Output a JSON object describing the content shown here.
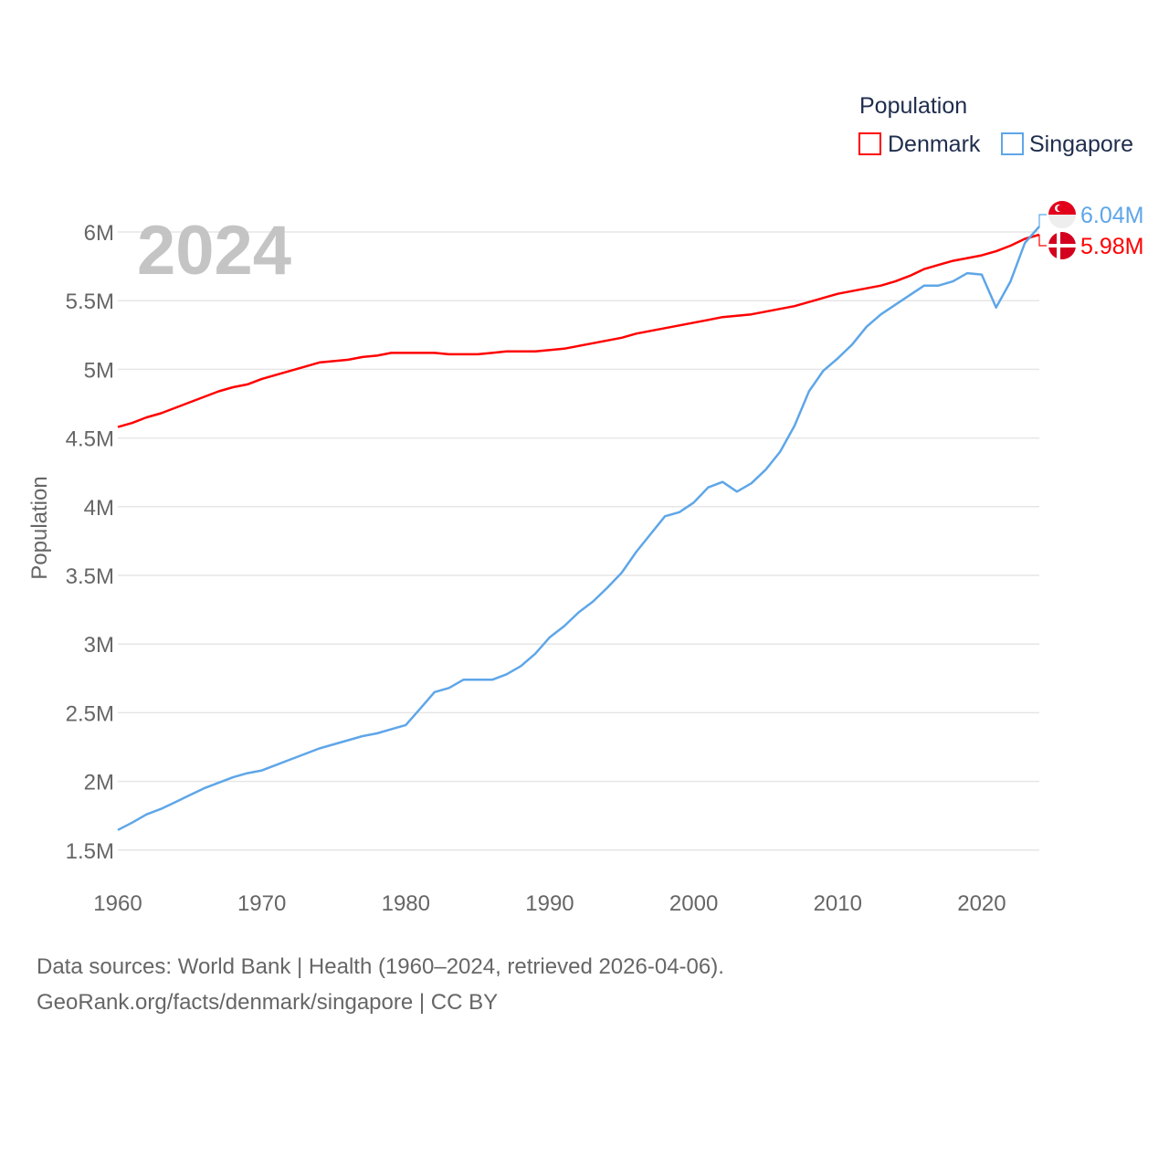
{
  "chart_data": {
    "type": "line",
    "year_label": "2024",
    "ylabel": "Population",
    "xlabel": "",
    "ylim": [
      1.5,
      6.1
    ],
    "xlim": [
      1960,
      2024
    ],
    "grid": true,
    "legend_title": "Population",
    "legend_position": "top-right",
    "y_ticks": [
      {
        "v": 1.5,
        "label": "1.5M"
      },
      {
        "v": 2,
        "label": "2M"
      },
      {
        "v": 2.5,
        "label": "2.5M"
      },
      {
        "v": 3,
        "label": "3M"
      },
      {
        "v": 3.5,
        "label": "3.5M"
      },
      {
        "v": 4,
        "label": "4M"
      },
      {
        "v": 4.5,
        "label": "4.5M"
      },
      {
        "v": 5,
        "label": "5M"
      },
      {
        "v": 5.5,
        "label": "5.5M"
      },
      {
        "v": 6,
        "label": "6M"
      }
    ],
    "x_ticks": [
      {
        "v": 1960,
        "label": "1960"
      },
      {
        "v": 1970,
        "label": "1970"
      },
      {
        "v": 1980,
        "label": "1980"
      },
      {
        "v": 1990,
        "label": "1990"
      },
      {
        "v": 2000,
        "label": "2000"
      },
      {
        "v": 2010,
        "label": "2010"
      },
      {
        "v": 2020,
        "label": "2020"
      }
    ],
    "x": [
      1960,
      1961,
      1962,
      1963,
      1964,
      1965,
      1966,
      1967,
      1968,
      1969,
      1970,
      1971,
      1972,
      1973,
      1974,
      1975,
      1976,
      1977,
      1978,
      1979,
      1980,
      1981,
      1982,
      1983,
      1984,
      1985,
      1986,
      1987,
      1988,
      1989,
      1990,
      1991,
      1992,
      1993,
      1994,
      1995,
      1996,
      1997,
      1998,
      1999,
      2000,
      2001,
      2002,
      2003,
      2004,
      2005,
      2006,
      2007,
      2008,
      2009,
      2010,
      2011,
      2012,
      2013,
      2014,
      2015,
      2016,
      2017,
      2018,
      2019,
      2020,
      2021,
      2022,
      2023,
      2024
    ],
    "series": [
      {
        "name": "Denmark",
        "color": "#ff0000",
        "end_label": "5.98M",
        "flag": "denmark-flag",
        "values": [
          4.58,
          4.61,
          4.65,
          4.68,
          4.72,
          4.76,
          4.8,
          4.84,
          4.87,
          4.89,
          4.93,
          4.96,
          4.99,
          5.02,
          5.05,
          5.06,
          5.07,
          5.09,
          5.1,
          5.12,
          5.12,
          5.12,
          5.12,
          5.11,
          5.11,
          5.11,
          5.12,
          5.13,
          5.13,
          5.13,
          5.14,
          5.15,
          5.17,
          5.19,
          5.21,
          5.23,
          5.26,
          5.28,
          5.3,
          5.32,
          5.34,
          5.36,
          5.38,
          5.39,
          5.4,
          5.42,
          5.44,
          5.46,
          5.49,
          5.52,
          5.55,
          5.57,
          5.59,
          5.61,
          5.64,
          5.68,
          5.73,
          5.76,
          5.79,
          5.81,
          5.83,
          5.86,
          5.9,
          5.95,
          5.98
        ]
      },
      {
        "name": "Singapore",
        "color": "#5ea6e8",
        "end_label": "6.04M",
        "flag": "singapore-flag",
        "values": [
          1.646,
          1.7,
          1.76,
          1.8,
          1.85,
          1.9,
          1.95,
          1.99,
          2.03,
          2.06,
          2.08,
          2.12,
          2.16,
          2.2,
          2.24,
          2.27,
          2.3,
          2.33,
          2.35,
          2.38,
          2.41,
          2.53,
          2.65,
          2.68,
          2.74,
          2.74,
          2.74,
          2.78,
          2.84,
          2.93,
          3.05,
          3.13,
          3.23,
          3.31,
          3.41,
          3.52,
          3.67,
          3.8,
          3.93,
          3.96,
          4.03,
          4.14,
          4.18,
          4.11,
          4.17,
          4.27,
          4.4,
          4.59,
          4.84,
          4.99,
          5.08,
          5.18,
          5.31,
          5.4,
          5.47,
          5.54,
          5.61,
          5.61,
          5.64,
          5.7,
          5.69,
          5.45,
          5.64,
          5.92,
          6.04
        ]
      }
    ]
  },
  "footer": {
    "line1": "Data sources: World Bank | Health (1960–2024, retrieved 2026-04-06).",
    "line2": "GeoRank.org/facts/denmark/singapore | CC BY"
  }
}
